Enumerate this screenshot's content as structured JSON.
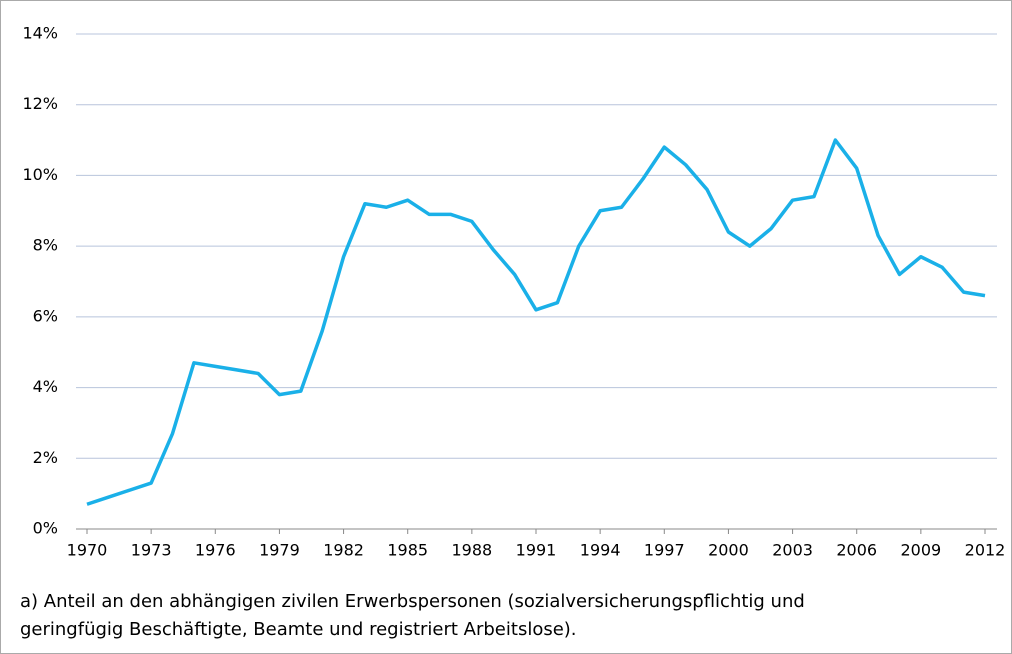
{
  "chart_data": {
    "type": "line",
    "x": [
      1970,
      1971,
      1972,
      1973,
      1974,
      1975,
      1976,
      1977,
      1978,
      1979,
      1980,
      1981,
      1982,
      1983,
      1984,
      1985,
      1986,
      1987,
      1988,
      1989,
      1990,
      1991,
      1992,
      1993,
      1994,
      1995,
      1996,
      1997,
      1998,
      1999,
      2000,
      2001,
      2002,
      2003,
      2004,
      2005,
      2006,
      2007,
      2008,
      2009,
      2010,
      2011,
      2012
    ],
    "values": [
      0.7,
      0.9,
      1.1,
      1.3,
      2.7,
      4.7,
      4.6,
      4.5,
      4.4,
      3.8,
      3.9,
      5.6,
      7.7,
      9.2,
      9.1,
      9.3,
      8.9,
      8.9,
      8.7,
      7.9,
      7.2,
      6.2,
      6.4,
      8.0,
      9.0,
      9.1,
      9.9,
      10.8,
      10.3,
      9.6,
      8.4,
      8.0,
      8.5,
      9.3,
      9.4,
      11.0,
      10.2,
      8.3,
      7.2,
      7.7,
      7.4,
      6.7,
      6.6
    ],
    "color": "#1ab0e8",
    "xlim": [
      1970,
      2012
    ],
    "xticks": [
      1970,
      1973,
      1976,
      1979,
      1982,
      1985,
      1988,
      1991,
      1994,
      1997,
      2000,
      2003,
      2006,
      2009,
      2012
    ],
    "ylim": [
      0,
      14
    ],
    "yticks": [
      {
        "value": 0,
        "label": "0%"
      },
      {
        "value": 2,
        "label": "2%"
      },
      {
        "value": 4,
        "label": "4%"
      },
      {
        "value": 6,
        "label": "6%"
      },
      {
        "value": 8,
        "label": "8%"
      },
      {
        "value": 10,
        "label": "10%"
      },
      {
        "value": 12,
        "label": "12%"
      },
      {
        "value": 14,
        "label": "14%"
      }
    ],
    "grid": true,
    "caption": [
      "a) Anteil an den abhängigen zivilen Erwerbspersonen (sozialversicherungspflichtig und",
      "geringfügig Beschäftigte, Beamte und registriert Arbeitslose)."
    ]
  }
}
